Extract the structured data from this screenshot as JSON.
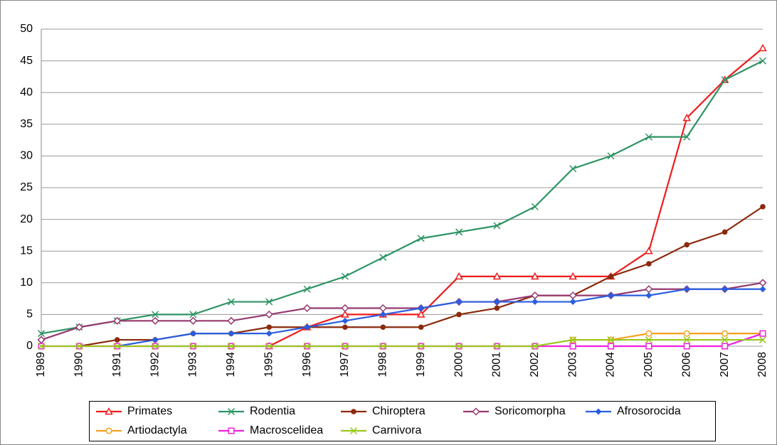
{
  "chart_data": {
    "type": "line",
    "categories": [
      "1989",
      "1990",
      "1991",
      "1992",
      "1993",
      "1994",
      "1995",
      "1996",
      "1997",
      "1998",
      "1999",
      "2000",
      "2001",
      "2002",
      "2003",
      "2004",
      "2005",
      "2006",
      "2007",
      "2008"
    ],
    "ylim": [
      0,
      50
    ],
    "yticks": [
      0,
      5,
      10,
      15,
      20,
      25,
      30,
      35,
      40,
      45,
      50
    ],
    "grid": true,
    "legend": "bottom",
    "series": [
      {
        "name": "Primates",
        "color": "#ee1c1c",
        "marker": "triangle",
        "values": [
          null,
          null,
          null,
          null,
          null,
          null,
          0,
          3,
          5,
          5,
          5,
          11,
          11,
          11,
          11,
          11,
          15,
          36,
          42,
          47
        ]
      },
      {
        "name": "Rodentia",
        "color": "#2e9464",
        "marker": "x",
        "values": [
          2,
          3,
          4,
          5,
          5,
          7,
          7,
          9,
          11,
          14,
          17,
          18,
          19,
          22,
          28,
          30,
          33,
          33,
          42,
          45
        ]
      },
      {
        "name": "Chiroptera",
        "color": "#8b2a0c",
        "marker": "circle",
        "values": [
          null,
          0,
          1,
          1,
          2,
          2,
          3,
          3,
          3,
          3,
          3,
          5,
          6,
          8,
          8,
          11,
          13,
          16,
          18,
          22
        ]
      },
      {
        "name": "Soricomorpha",
        "color": "#953a70",
        "marker": "diamond-open",
        "values": [
          1,
          3,
          4,
          4,
          4,
          4,
          5,
          6,
          6,
          6,
          6,
          7,
          7,
          8,
          8,
          8,
          9,
          9,
          9,
          10
        ]
      },
      {
        "name": "Afrosorocida",
        "color": "#2a5ee0",
        "marker": "diamond",
        "values": [
          null,
          null,
          0,
          1,
          2,
          2,
          2,
          3,
          4,
          5,
          6,
          7,
          7,
          7,
          7,
          8,
          8,
          9,
          9,
          9
        ]
      },
      {
        "name": "Artiodactyla",
        "color": "#f5a020",
        "marker": "circle-open",
        "values": [
          null,
          null,
          null,
          null,
          null,
          null,
          null,
          null,
          null,
          null,
          null,
          null,
          null,
          null,
          1,
          1,
          2,
          2,
          2,
          2
        ]
      },
      {
        "name": "Macroscelidea",
        "color": "#f020e0",
        "marker": "square-open",
        "values": [
          0,
          0,
          0,
          0,
          0,
          0,
          0,
          0,
          0,
          0,
          0,
          0,
          0,
          0,
          0,
          0,
          0,
          0,
          0,
          2
        ]
      },
      {
        "name": "Carnivora",
        "color": "#9ac81a",
        "marker": "x",
        "values": [
          0,
          0,
          0,
          0,
          0,
          0,
          0,
          0,
          0,
          0,
          0,
          0,
          0,
          0,
          1,
          1,
          1,
          1,
          1,
          1
        ]
      }
    ]
  }
}
